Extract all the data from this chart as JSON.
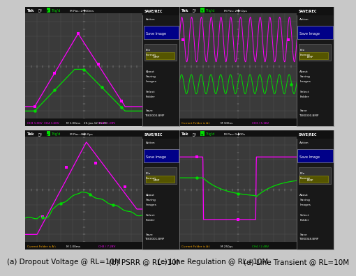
{
  "bg_color": "#c8c8c8",
  "scope_bg": "#3a3a3a",
  "scope_bg2": "#2a2a2a",
  "grid_color": "#555555",
  "grid_minor": "#444444",
  "magenta": "#ff00ff",
  "green": "#00dd00",
  "white": "#ffffff",
  "yellow": "#ffff00",
  "cyan": "#00ffff",
  "orange": "#ffaa00",
  "save_bg": "#1e1e1e",
  "save_border": "#777777",
  "black": "#000000",
  "captions": [
    "(a) Dropout Voltage @ RL=10M",
    "(b) PSRR @ RL=10M",
    "(c) Line Regulation @ RL=10M",
    "(d) Line Transient @ RL=10M"
  ],
  "headers": [
    "M Pos: 2.960ms",
    "M Pos: 200.0μs",
    "M Pos: 480.0μs",
    "M Pos: 0.000s"
  ],
  "bot_left": [
    "CH3 1.00V   CH4 1.60V",
    "Current Folder is A:\\",
    "Current Folder is A:\\",
    "Current Folder is A:\\"
  ],
  "bot_mid": [
    "M 1.00ms         25-Jan-12 15:28",
    "M 100ns",
    "M 1.00ms",
    "M 250μs"
  ],
  "bot_right": [
    "CH4 / 1.09V        39.338Hz",
    "CH3 / 5.16V",
    "CH3 / 7.28V",
    "CH4 / 2.48V"
  ],
  "save_items": [
    "Action",
    "Save Image",
    "File\nFormat\nBMP",
    "About\nSaving\nImages",
    "Select\nFolder",
    "Save\nTEK0000.BMP"
  ],
  "save_items_b": [
    "Action",
    "Save Image",
    "File\nFormat\nBMP",
    "About\nSaving\nImages",
    "Select\nFolder",
    "Save\nTEK0001.BMP"
  ],
  "save_items_d": [
    "Action",
    "Save Image",
    "File\nFormat\nBMP",
    "About\nSaving\nImages",
    "Select\nFolder",
    "Save\nTEK0048.BMP"
  ]
}
